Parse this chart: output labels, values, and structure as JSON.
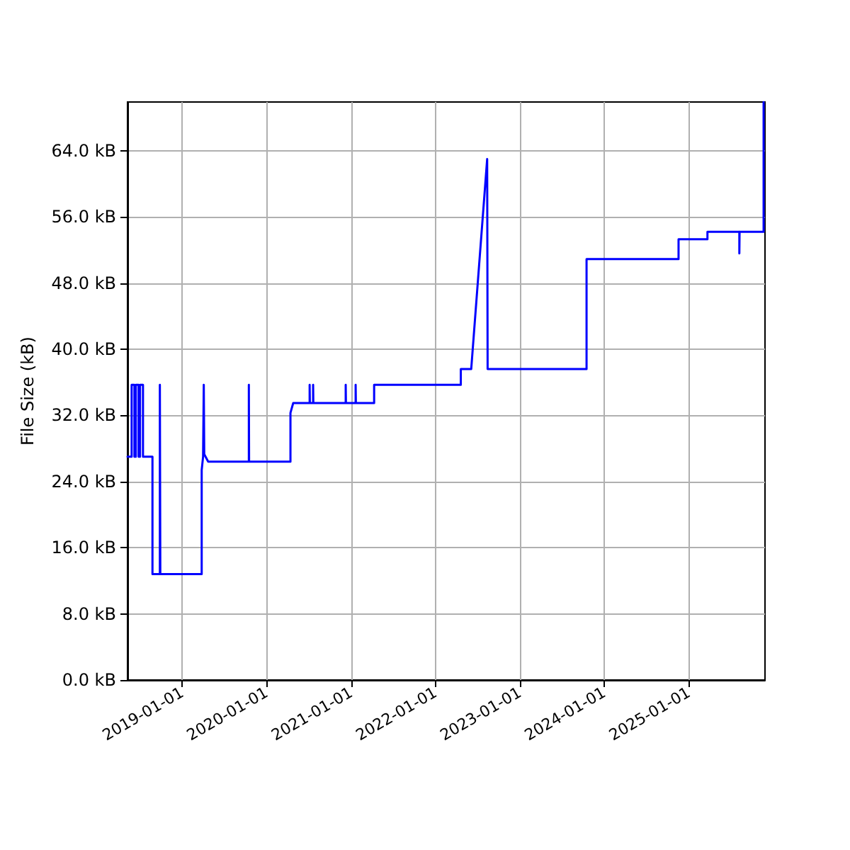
{
  "chart_data": {
    "type": "line",
    "ylabel": "File Size (kB)",
    "x": [
      "2018-05-09",
      "2018-05-27",
      "2018-05-27",
      "2018-06-08",
      "2018-06-08",
      "2018-06-14",
      "2018-06-14",
      "2018-06-26",
      "2018-06-26",
      "2018-07-02",
      "2018-07-02",
      "2018-07-15",
      "2018-07-15",
      "2018-08-25",
      "2018-08-25",
      "2018-09-26",
      "2018-09-26",
      "2018-09-28",
      "2018-09-28",
      "2019-03-26",
      "2019-03-26",
      "2019-04-01",
      "2019-04-04",
      "2019-04-06",
      "2019-04-23",
      "2019-10-16",
      "2019-10-16",
      "2019-10-17",
      "2020-04-13",
      "2020-04-13",
      "2020-04-25",
      "2020-07-05",
      "2020-07-05",
      "2020-07-06",
      "2020-07-20",
      "2020-07-20",
      "2020-07-21",
      "2020-12-08",
      "2020-12-08",
      "2020-12-09",
      "2021-01-20",
      "2021-01-20",
      "2021-01-21",
      "2021-04-10",
      "2021-04-10",
      "2022-04-20",
      "2022-04-20",
      "2022-06-04",
      "2022-08-12",
      "2022-08-14",
      "2023-10-16",
      "2023-10-16",
      "2024-11-17",
      "2024-11-17",
      "2025-03-22",
      "2025-03-22",
      "2025-08-07",
      "2025-08-07",
      "2025-08-08",
      "2025-11-20",
      "2025-11-20"
    ],
    "series": [
      {
        "color": "#0000ff",
        "values": [
          27.0,
          27.0,
          35.7,
          35.7,
          27.0,
          27.0,
          35.7,
          35.7,
          27.0,
          27.0,
          35.7,
          35.7,
          27.0,
          27.0,
          12.8,
          12.8,
          35.7,
          35.7,
          12.8,
          12.8,
          25.4,
          27.0,
          35.7,
          27.3,
          26.4,
          26.4,
          35.7,
          26.4,
          26.4,
          32.3,
          33.5,
          33.5,
          35.7,
          33.5,
          33.5,
          35.7,
          33.5,
          33.5,
          35.7,
          33.5,
          33.5,
          35.7,
          33.5,
          33.5,
          35.7,
          35.7,
          37.6,
          37.6,
          63.0,
          37.6,
          37.6,
          50.9,
          50.9,
          53.3,
          53.3,
          54.2,
          54.2,
          51.6,
          54.2,
          54.2,
          69.9
        ]
      }
    ],
    "xlim": [
      "2018-05-09",
      "2025-11-26"
    ],
    "xticks": [
      "2019-01-01",
      "2020-01-01",
      "2021-01-01",
      "2022-01-01",
      "2023-01-01",
      "2024-01-01",
      "2025-01-01"
    ],
    "ylim": [
      0,
      69.9
    ],
    "yticks": [
      {
        "value": 0,
        "label": "0.0 kB"
      },
      {
        "value": 8,
        "label": "8.0 kB"
      },
      {
        "value": 16,
        "label": "16.0 kB"
      },
      {
        "value": 24,
        "label": "24.0 kB"
      },
      {
        "value": 32,
        "label": "32.0 kB"
      },
      {
        "value": 40,
        "label": "40.0 kB"
      },
      {
        "value": 48,
        "label": "48.0 kB"
      },
      {
        "value": 56,
        "label": "56.0 kB"
      },
      {
        "value": 64,
        "label": "64.0 kB"
      }
    ],
    "grid": true,
    "marker": "none",
    "line_style": "solid"
  }
}
